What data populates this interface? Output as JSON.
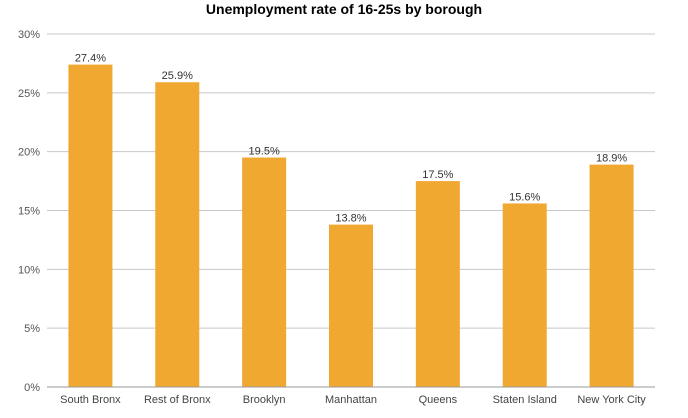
{
  "chart_data": {
    "type": "bar",
    "title": "Unemployment rate of 16-25s by borough",
    "xlabel": "",
    "ylabel": "",
    "categories": [
      "South Bronx",
      "Rest of Bronx",
      "Brooklyn",
      "Manhattan",
      "Queens",
      "Staten Island",
      "New York City"
    ],
    "values": [
      27.4,
      25.9,
      19.5,
      13.8,
      17.5,
      15.6,
      18.9
    ],
    "data_labels": [
      "27.4%",
      "25.9%",
      "19.5%",
      "13.8%",
      "17.5%",
      "15.6%",
      "18.9%"
    ],
    "ylim": [
      0,
      30
    ],
    "yticks": [
      0,
      5,
      10,
      15,
      20,
      25,
      30
    ],
    "ytick_labels": [
      "0%",
      "5%",
      "10%",
      "15%",
      "20%",
      "25%",
      "30%"
    ],
    "grid": true,
    "legend": "none",
    "colors": {
      "bar": "#F0A830",
      "grid": "#c8c8c8",
      "axis": "#999999"
    }
  }
}
